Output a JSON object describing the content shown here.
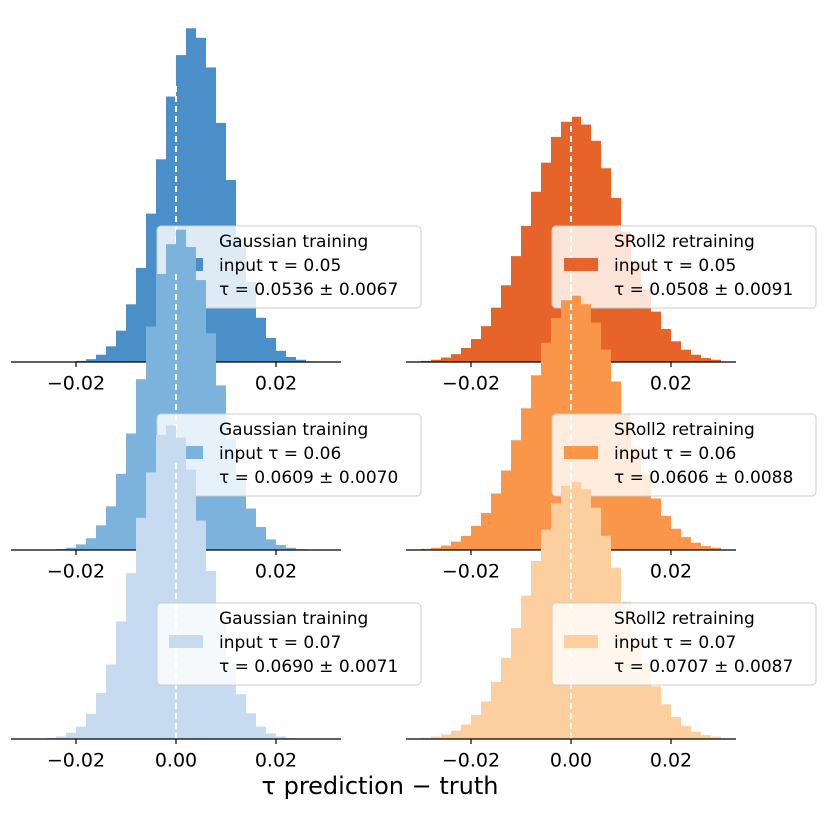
{
  "xlabel": "τ prediction − truth",
  "chart_data": [
    {
      "type": "histogram",
      "color": "#4a8fc8",
      "xlim": [
        -0.033,
        0.033
      ],
      "ylim": [
        0,
        60
      ],
      "xticks": [
        {
          "value": -0.02,
          "label": "−0.02"
        },
        {
          "value": 0,
          "label": "0.00"
        },
        {
          "value": 0.02,
          "label": "0.02"
        }
      ],
      "vline": 0,
      "legend": [
        "Gaussian training",
        "input τ = 0.05",
        "τ = 0.0536 ± 0.0067"
      ],
      "bins": [
        -0.03,
        -0.028,
        -0.026,
        -0.024,
        -0.022,
        -0.02,
        -0.018,
        -0.016,
        -0.014,
        -0.012,
        -0.01,
        -0.008,
        -0.006,
        -0.004,
        -0.002,
        0,
        0.002,
        0.004,
        0.006,
        0.008,
        0.01,
        0.012,
        0.014,
        0.016,
        0.018,
        0.02,
        0.022,
        0.024,
        0.026,
        0.028,
        0.03
      ],
      "values": [
        0,
        0,
        0,
        0.02,
        0.07,
        0.2,
        0.5,
        1.3,
        2.8,
        5.6,
        10.3,
        16.8,
        26.5,
        36.2,
        47.4,
        54.8,
        59.6,
        57.9,
        52.6,
        42.7,
        32.5,
        22.0,
        14.3,
        7.9,
        4.3,
        2.0,
        0.9,
        0.4,
        0.1,
        0.05
      ]
    },
    {
      "type": "histogram",
      "color": "#e6632a",
      "xlim": [
        -0.033,
        0.033
      ],
      "ylim": [
        0,
        60
      ],
      "xticks": [
        {
          "value": -0.02,
          "label": "−0.02"
        },
        {
          "value": 0,
          "label": "0.00"
        },
        {
          "value": 0.02,
          "label": "0.02"
        }
      ],
      "vline": 0,
      "legend": [
        "SRoll2 retraining",
        "input τ = 0.05",
        "τ = 0.0508 ± 0.0091"
      ],
      "bins": [
        -0.03,
        -0.028,
        -0.026,
        -0.024,
        -0.022,
        -0.02,
        -0.018,
        -0.016,
        -0.014,
        -0.012,
        -0.01,
        -0.008,
        -0.006,
        -0.004,
        -0.002,
        0,
        0.002,
        0.004,
        0.006,
        0.008,
        0.01,
        0.012,
        0.014,
        0.016,
        0.018,
        0.02,
        0.022,
        0.024,
        0.026,
        0.028,
        0.03
      ],
      "values": [
        0.2,
        0.4,
        0.8,
        1.4,
        2.5,
        4.1,
        6.4,
        9.7,
        13.7,
        18.9,
        24.3,
        30.4,
        35.6,
        40.2,
        42.9,
        43.8,
        42.4,
        39.5,
        34.6,
        29.3,
        23.3,
        17.9,
        12.9,
        9.0,
        5.9,
        3.7,
        2.2,
        1.3,
        0.7,
        0.4
      ]
    },
    {
      "type": "histogram",
      "color": "#7bb3dd",
      "xlim": [
        -0.033,
        0.033
      ],
      "ylim": [
        0,
        60
      ],
      "xticks": [
        {
          "value": -0.02,
          "label": "−0.02"
        },
        {
          "value": 0,
          "label": "0.00"
        },
        {
          "value": 0.02,
          "label": "0.02"
        }
      ],
      "vline": 0,
      "legend": [
        "Gaussian training",
        "input τ = 0.06",
        "τ = 0.0609 ± 0.0070"
      ],
      "bins": [
        -0.03,
        -0.028,
        -0.026,
        -0.024,
        -0.022,
        -0.02,
        -0.018,
        -0.016,
        -0.014,
        -0.012,
        -0.01,
        -0.008,
        -0.006,
        -0.004,
        -0.002,
        0,
        0.002,
        0.004,
        0.006,
        0.008,
        0.01,
        0.012,
        0.014,
        0.016,
        0.018,
        0.02,
        0.022,
        0.024,
        0.026,
        0.028,
        0.03
      ],
      "values": [
        0,
        0.02,
        0.06,
        0.17,
        0.4,
        1.0,
        2.1,
        4.4,
        7.8,
        13.6,
        20.8,
        30.5,
        39.9,
        49.3,
        54.6,
        57.2,
        54.1,
        48.2,
        38.7,
        29.4,
        19.8,
        12.9,
        7.4,
        4.1,
        1.9,
        0.9,
        0.4,
        0.15,
        0.05,
        0.02
      ]
    },
    {
      "type": "histogram",
      "color": "#f99649",
      "xlim": [
        -0.033,
        0.033
      ],
      "ylim": [
        0,
        60
      ],
      "xticks": [
        {
          "value": -0.02,
          "label": "−0.02"
        },
        {
          "value": 0,
          "label": "0.00"
        },
        {
          "value": 0.02,
          "label": "0.02"
        }
      ],
      "vline": 0,
      "legend": [
        "SRoll2 retraining",
        "input τ = 0.06",
        "τ = 0.0606 ± 0.0088"
      ],
      "bins": [
        -0.03,
        -0.028,
        -0.026,
        -0.024,
        -0.022,
        -0.02,
        -0.018,
        -0.016,
        -0.014,
        -0.012,
        -0.01,
        -0.008,
        -0.006,
        -0.004,
        -0.002,
        0,
        0.002,
        0.004,
        0.006,
        0.008,
        0.01,
        0.012,
        0.014,
        0.016,
        0.018,
        0.02,
        0.022,
        0.024,
        0.026,
        0.028,
        0.03
      ],
      "values": [
        0.2,
        0.4,
        0.8,
        1.5,
        2.5,
        4.3,
        6.6,
        10.1,
        14.2,
        19.6,
        25.3,
        31.2,
        37.0,
        41.4,
        44.6,
        45.4,
        43.9,
        40.6,
        35.8,
        30.1,
        24.2,
        18.3,
        13.5,
        9.2,
        6.1,
        3.8,
        2.3,
        1.3,
        0.7,
        0.4
      ]
    },
    {
      "type": "histogram",
      "color": "#c6dbef",
      "xlim": [
        -0.033,
        0.033
      ],
      "ylim": [
        0,
        60
      ],
      "xticks": [
        {
          "value": -0.02,
          "label": "−0.02"
        },
        {
          "value": 0,
          "label": "0.00"
        },
        {
          "value": 0.02,
          "label": "0.02"
        }
      ],
      "vline": 0,
      "legend": [
        "Gaussian training",
        "input τ = 0.07",
        "τ = 0.0690 ± 0.0071"
      ],
      "bins": [
        -0.03,
        -0.028,
        -0.026,
        -0.024,
        -0.022,
        -0.02,
        -0.018,
        -0.016,
        -0.014,
        -0.012,
        -0.01,
        -0.008,
        -0.006,
        -0.004,
        -0.002,
        0,
        0.002,
        0.004,
        0.006,
        0.008,
        0.01,
        0.012,
        0.014,
        0.016,
        0.018,
        0.02,
        0.022,
        0.024,
        0.026,
        0.028,
        0.03
      ],
      "values": [
        0.02,
        0.07,
        0.18,
        0.46,
        1.1,
        2.2,
        4.5,
        8.2,
        13.3,
        21.0,
        29.6,
        39.5,
        47.6,
        54.3,
        56.0,
        53.8,
        48.1,
        39.0,
        30.0,
        20.6,
        13.6,
        8.0,
        4.6,
        2.2,
        1.0,
        0.46,
        0.18,
        0.07,
        0.02,
        0.01
      ]
    },
    {
      "type": "histogram",
      "color": "#fdcf9e",
      "xlim": [
        -0.033,
        0.033
      ],
      "ylim": [
        0,
        60
      ],
      "xticks": [
        {
          "value": -0.02,
          "label": "−0.02"
        },
        {
          "value": 0,
          "label": "0.00"
        },
        {
          "value": 0.02,
          "label": "0.02"
        }
      ],
      "vline": 0,
      "legend": [
        "SRoll2 retraining",
        "input τ = 0.07",
        "τ = 0.0707 ± 0.0087"
      ],
      "bins": [
        -0.03,
        -0.028,
        -0.026,
        -0.024,
        -0.022,
        -0.02,
        -0.018,
        -0.016,
        -0.014,
        -0.012,
        -0.01,
        -0.008,
        -0.006,
        -0.004,
        -0.002,
        0,
        0.002,
        0.004,
        0.006,
        0.008,
        0.01,
        0.012,
        0.014,
        0.016,
        0.018,
        0.02,
        0.022,
        0.024,
        0.026,
        0.028,
        0.03
      ],
      "values": [
        0.2,
        0.4,
        0.8,
        1.5,
        2.6,
        4.3,
        6.7,
        10.2,
        14.5,
        19.8,
        25.6,
        31.8,
        37.4,
        42.1,
        45.2,
        45.9,
        44.6,
        41.3,
        36.3,
        30.6,
        24.5,
        18.7,
        13.6,
        9.4,
        6.2,
        3.9,
        2.3,
        1.3,
        0.7,
        0.4
      ]
    }
  ]
}
